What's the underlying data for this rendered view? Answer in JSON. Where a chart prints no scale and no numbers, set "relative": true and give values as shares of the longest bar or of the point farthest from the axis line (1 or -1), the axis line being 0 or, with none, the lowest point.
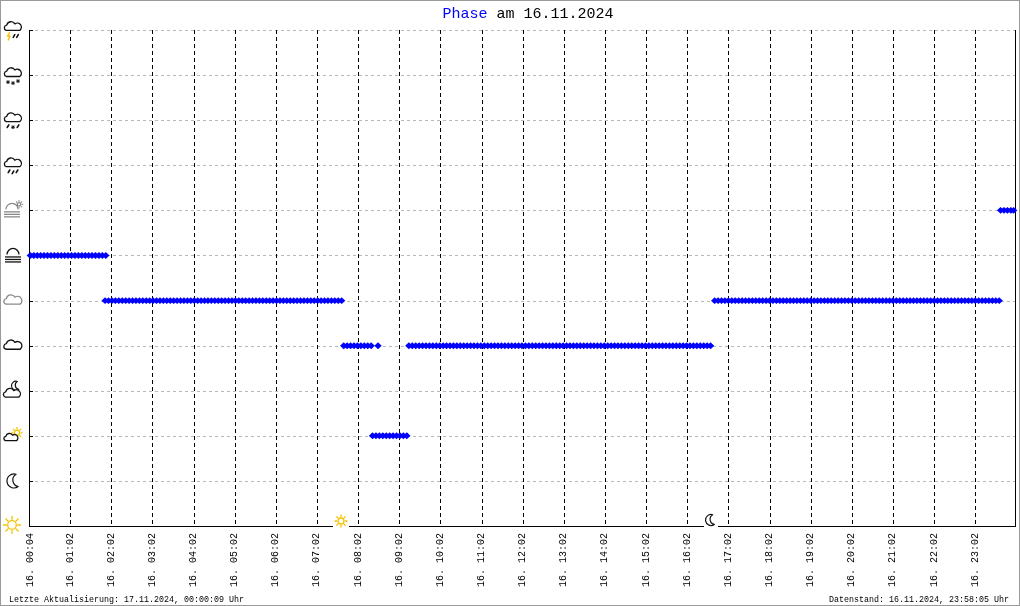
{
  "chart_data": {
    "type": "scatter",
    "title": "Phase am 16.11.2024",
    "annotations": [
      "Letzte Aktualisierung: 17.11.2024, 00:00:09 Uhr",
      "Datenstand: 16.11.2024, 23:58:05 Uhr"
    ],
    "relative": true,
    "grid": true,
    "marker": "diamond",
    "xlim": [
      "2024-11-16T00:02",
      "2024-11-17T00:00"
    ],
    "xticks": [
      {
        "value": "2024-11-16T00:04",
        "label": "16. 00:04"
      },
      {
        "value": "2024-11-16T01:02",
        "label": "16. 01:02"
      },
      {
        "value": "2024-11-16T02:02",
        "label": "16. 02:02"
      },
      {
        "value": "2024-11-16T03:02",
        "label": "16. 03:02"
      },
      {
        "value": "2024-11-16T04:02",
        "label": "16. 04:02"
      },
      {
        "value": "2024-11-16T05:02",
        "label": "16. 05:02"
      },
      {
        "value": "2024-11-16T06:02",
        "label": "16. 06:02"
      },
      {
        "value": "2024-11-16T07:02",
        "label": "16. 07:02"
      },
      {
        "value": "2024-11-16T08:02",
        "label": "16. 08:02"
      },
      {
        "value": "2024-11-16T09:02",
        "label": "16. 09:02"
      },
      {
        "value": "2024-11-16T10:02",
        "label": "16. 10:02"
      },
      {
        "value": "2024-11-16T11:02",
        "label": "16. 11:02"
      },
      {
        "value": "2024-11-16T12:02",
        "label": "16. 12:02"
      },
      {
        "value": "2024-11-16T13:02",
        "label": "16. 13:02"
      },
      {
        "value": "2024-11-16T14:02",
        "label": "16. 14:02"
      },
      {
        "value": "2024-11-16T15:02",
        "label": "16. 15:02"
      },
      {
        "value": "2024-11-16T16:02",
        "label": "16. 16:02"
      },
      {
        "value": "2024-11-16T17:02",
        "label": "16. 17:02"
      },
      {
        "value": "2024-11-16T18:02",
        "label": "16. 18:02"
      },
      {
        "value": "2024-11-16T19:02",
        "label": "16. 19:02"
      },
      {
        "value": "2024-11-16T20:02",
        "label": "16. 20:02"
      },
      {
        "value": "2024-11-16T21:02",
        "label": "16. 21:02"
      },
      {
        "value": "2024-11-16T22:02",
        "label": "16. 22:02"
      },
      {
        "value": "2024-11-16T23:02",
        "label": "16. 23:02"
      }
    ],
    "series": [
      {
        "color": "#0000ff",
        "x": [
          "2024-11-16T00:04",
          "2024-11-16T00:09",
          "2024-11-16T00:14",
          "2024-11-16T00:19",
          "2024-11-16T00:24",
          "2024-11-16T00:29",
          "2024-11-16T00:34",
          "2024-11-16T00:39",
          "2024-11-16T00:44",
          "2024-11-16T00:49",
          "2024-11-16T00:54",
          "2024-11-16T00:59",
          "2024-11-16T01:04",
          "2024-11-16T01:09",
          "2024-11-16T01:14",
          "2024-11-16T01:19",
          "2024-11-16T01:24",
          "2024-11-16T01:29",
          "2024-11-16T01:34",
          "2024-11-16T01:39",
          "2024-11-16T01:44",
          "2024-11-16T01:49",
          "2024-11-16T01:54",
          "2024-11-16T01:53",
          "2024-11-16T01:58",
          "2024-11-16T02:03",
          "2024-11-16T02:08",
          "2024-11-16T02:13",
          "2024-11-16T02:18",
          "2024-11-16T02:23",
          "2024-11-16T02:28",
          "2024-11-16T02:33",
          "2024-11-16T02:38",
          "2024-11-16T02:43",
          "2024-11-16T02:48",
          "2024-11-16T02:53",
          "2024-11-16T02:58",
          "2024-11-16T03:03",
          "2024-11-16T03:08",
          "2024-11-16T03:13",
          "2024-11-16T03:18",
          "2024-11-16T03:23",
          "2024-11-16T03:28",
          "2024-11-16T03:33",
          "2024-11-16T03:38",
          "2024-11-16T03:43",
          "2024-11-16T03:48",
          "2024-11-16T03:53",
          "2024-11-16T03:58",
          "2024-11-16T04:03",
          "2024-11-16T04:08",
          "2024-11-16T04:13",
          "2024-11-16T04:18",
          "2024-11-16T04:23",
          "2024-11-16T04:28",
          "2024-11-16T04:33",
          "2024-11-16T04:38",
          "2024-11-16T04:43",
          "2024-11-16T04:48",
          "2024-11-16T04:53",
          "2024-11-16T04:58",
          "2024-11-16T05:03",
          "2024-11-16T05:08",
          "2024-11-16T05:13",
          "2024-11-16T05:18",
          "2024-11-16T05:23",
          "2024-11-16T05:28",
          "2024-11-16T05:33",
          "2024-11-16T05:38",
          "2024-11-16T05:43",
          "2024-11-16T05:48",
          "2024-11-16T05:53",
          "2024-11-16T05:58",
          "2024-11-16T06:03",
          "2024-11-16T06:08",
          "2024-11-16T06:13",
          "2024-11-16T06:18",
          "2024-11-16T06:23",
          "2024-11-16T06:28",
          "2024-11-16T06:33",
          "2024-11-16T06:38",
          "2024-11-16T06:43",
          "2024-11-16T06:48",
          "2024-11-16T06:53",
          "2024-11-16T06:58",
          "2024-11-16T07:03",
          "2024-11-16T07:08",
          "2024-11-16T07:13",
          "2024-11-16T07:18",
          "2024-11-16T07:23",
          "2024-11-16T07:28",
          "2024-11-16T07:33",
          "2024-11-16T07:38",
          "2024-11-16T07:41",
          "2024-11-16T07:46",
          "2024-11-16T07:51",
          "2024-11-16T07:56",
          "2024-11-16T08:01",
          "2024-11-16T08:06",
          "2024-11-16T08:11",
          "2024-11-16T08:16",
          "2024-11-16T08:21",
          "2024-11-16T08:31",
          "2024-11-16T08:23",
          "2024-11-16T08:28",
          "2024-11-16T08:33",
          "2024-11-16T08:38",
          "2024-11-16T08:43",
          "2024-11-16T08:48",
          "2024-11-16T08:53",
          "2024-11-16T08:58",
          "2024-11-16T09:03",
          "2024-11-16T09:08",
          "2024-11-16T09:13",
          "2024-11-16T09:16",
          "2024-11-16T09:21",
          "2024-11-16T09:26",
          "2024-11-16T09:31",
          "2024-11-16T09:36",
          "2024-11-16T09:41",
          "2024-11-16T09:46",
          "2024-11-16T09:51",
          "2024-11-16T09:56",
          "2024-11-16T10:01",
          "2024-11-16T10:06",
          "2024-11-16T10:11",
          "2024-11-16T10:16",
          "2024-11-16T10:21",
          "2024-11-16T10:26",
          "2024-11-16T10:31",
          "2024-11-16T10:36",
          "2024-11-16T10:41",
          "2024-11-16T10:46",
          "2024-11-16T10:51",
          "2024-11-16T10:56",
          "2024-11-16T11:01",
          "2024-11-16T11:06",
          "2024-11-16T11:11",
          "2024-11-16T11:16",
          "2024-11-16T11:21",
          "2024-11-16T11:26",
          "2024-11-16T11:31",
          "2024-11-16T11:36",
          "2024-11-16T11:41",
          "2024-11-16T11:46",
          "2024-11-16T11:51",
          "2024-11-16T11:56",
          "2024-11-16T12:01",
          "2024-11-16T12:06",
          "2024-11-16T12:11",
          "2024-11-16T12:16",
          "2024-11-16T12:21",
          "2024-11-16T12:26",
          "2024-11-16T12:31",
          "2024-11-16T12:36",
          "2024-11-16T12:41",
          "2024-11-16T12:46",
          "2024-11-16T12:51",
          "2024-11-16T12:56",
          "2024-11-16T13:01",
          "2024-11-16T13:06",
          "2024-11-16T13:11",
          "2024-11-16T13:16",
          "2024-11-16T13:21",
          "2024-11-16T13:26",
          "2024-11-16T13:31",
          "2024-11-16T13:36",
          "2024-11-16T13:41",
          "2024-11-16T13:46",
          "2024-11-16T13:51",
          "2024-11-16T13:56",
          "2024-11-16T14:01",
          "2024-11-16T14:06",
          "2024-11-16T14:11",
          "2024-11-16T14:16",
          "2024-11-16T14:21",
          "2024-11-16T14:26",
          "2024-11-16T14:31",
          "2024-11-16T14:36",
          "2024-11-16T14:41",
          "2024-11-16T14:46",
          "2024-11-16T14:51",
          "2024-11-16T14:56",
          "2024-11-16T15:01",
          "2024-11-16T15:06",
          "2024-11-16T15:11",
          "2024-11-16T15:16",
          "2024-11-16T15:21",
          "2024-11-16T15:26",
          "2024-11-16T15:31",
          "2024-11-16T15:36",
          "2024-11-16T15:41",
          "2024-11-16T15:46",
          "2024-11-16T15:51",
          "2024-11-16T15:56",
          "2024-11-16T16:01",
          "2024-11-16T16:06",
          "2024-11-16T16:11",
          "2024-11-16T16:16",
          "2024-11-16T16:21",
          "2024-11-16T16:26",
          "2024-11-16T16:31",
          "2024-11-16T16:36",
          "2024-11-16T16:42",
          "2024-11-16T16:47",
          "2024-11-16T16:52",
          "2024-11-16T16:57",
          "2024-11-16T17:02",
          "2024-11-16T17:07",
          "2024-11-16T17:12",
          "2024-11-16T17:17",
          "2024-11-16T17:22",
          "2024-11-16T17:27",
          "2024-11-16T17:32",
          "2024-11-16T17:37",
          "2024-11-16T17:42",
          "2024-11-16T17:47",
          "2024-11-16T17:52",
          "2024-11-16T17:57",
          "2024-11-16T18:02",
          "2024-11-16T18:07",
          "2024-11-16T18:12",
          "2024-11-16T18:17",
          "2024-11-16T18:22",
          "2024-11-16T18:27",
          "2024-11-16T18:32",
          "2024-11-16T18:37",
          "2024-11-16T18:42",
          "2024-11-16T18:47",
          "2024-11-16T18:52",
          "2024-11-16T18:57",
          "2024-11-16T19:02",
          "2024-11-16T19:07",
          "2024-11-16T19:12",
          "2024-11-16T19:17",
          "2024-11-16T19:22",
          "2024-11-16T19:27",
          "2024-11-16T19:32",
          "2024-11-16T19:37",
          "2024-11-16T19:42",
          "2024-11-16T19:47",
          "2024-11-16T19:52",
          "2024-11-16T19:57",
          "2024-11-16T20:02",
          "2024-11-16T20:07",
          "2024-11-16T20:12",
          "2024-11-16T20:17",
          "2024-11-16T20:22",
          "2024-11-16T20:27",
          "2024-11-16T20:32",
          "2024-11-16T20:37",
          "2024-11-16T20:42",
          "2024-11-16T20:47",
          "2024-11-16T20:52",
          "2024-11-16T20:57",
          "2024-11-16T21:02",
          "2024-11-16T21:07",
          "2024-11-16T21:12",
          "2024-11-16T21:17",
          "2024-11-16T21:22",
          "2024-11-16T21:27",
          "2024-11-16T21:32",
          "2024-11-16T21:37",
          "2024-11-16T21:42",
          "2024-11-16T21:47",
          "2024-11-16T21:52",
          "2024-11-16T21:57",
          "2024-11-16T22:02",
          "2024-11-16T22:07",
          "2024-11-16T22:12",
          "2024-11-16T22:17",
          "2024-11-16T22:22",
          "2024-11-16T22:27",
          "2024-11-16T22:32",
          "2024-11-16T22:37",
          "2024-11-16T22:42",
          "2024-11-16T22:47",
          "2024-11-16T22:52",
          "2024-11-16T22:57",
          "2024-11-16T23:02",
          "2024-11-16T23:07",
          "2024-11-16T23:12",
          "2024-11-16T23:17",
          "2024-11-16T23:22",
          "2024-11-16T23:27",
          "2024-11-16T23:32",
          "2024-11-16T23:37",
          "2024-11-16T23:39",
          "2024-11-16T23:44",
          "2024-11-16T23:49",
          "2024-11-16T23:54",
          "2024-11-16T23:58"
        ],
        "values": [
          0.857,
          0.857,
          0.857,
          0.857,
          0.857,
          0.857,
          0.857,
          0.857,
          0.857,
          0.857,
          0.857,
          0.857,
          0.857,
          0.857,
          0.857,
          0.857,
          0.857,
          0.857,
          0.857,
          0.857,
          0.857,
          0.857,
          0.857,
          0.714,
          0.714,
          0.714,
          0.714,
          0.714,
          0.714,
          0.714,
          0.714,
          0.714,
          0.714,
          0.714,
          0.714,
          0.714,
          0.714,
          0.714,
          0.714,
          0.714,
          0.714,
          0.714,
          0.714,
          0.714,
          0.714,
          0.714,
          0.714,
          0.714,
          0.714,
          0.714,
          0.714,
          0.714,
          0.714,
          0.714,
          0.714,
          0.714,
          0.714,
          0.714,
          0.714,
          0.714,
          0.714,
          0.714,
          0.714,
          0.714,
          0.714,
          0.714,
          0.714,
          0.714,
          0.714,
          0.714,
          0.714,
          0.714,
          0.714,
          0.714,
          0.714,
          0.714,
          0.714,
          0.714,
          0.714,
          0.714,
          0.714,
          0.714,
          0.714,
          0.714,
          0.714,
          0.714,
          0.714,
          0.714,
          0.714,
          0.714,
          0.714,
          0.714,
          0.714,
          0.571,
          0.571,
          0.571,
          0.571,
          0.571,
          0.571,
          0.571,
          0.571,
          0.571,
          0.571,
          0.286,
          0.286,
          0.286,
          0.286,
          0.286,
          0.286,
          0.286,
          0.286,
          0.286,
          0.286,
          0.286,
          0.571,
          0.571,
          0.571,
          0.571,
          0.571,
          0.571,
          0.571,
          0.571,
          0.571,
          0.571,
          0.571,
          0.571,
          0.571,
          0.571,
          0.571,
          0.571,
          0.571,
          0.571,
          0.571,
          0.571,
          0.571,
          0.571,
          0.571,
          0.571,
          0.571,
          0.571,
          0.571,
          0.571,
          0.571,
          0.571,
          0.571,
          0.571,
          0.571,
          0.571,
          0.571,
          0.571,
          0.571,
          0.571,
          0.571,
          0.571,
          0.571,
          0.571,
          0.571,
          0.571,
          0.571,
          0.571,
          0.571,
          0.571,
          0.571,
          0.571,
          0.571,
          0.571,
          0.571,
          0.571,
          0.571,
          0.571,
          0.571,
          0.571,
          0.571,
          0.571,
          0.571,
          0.571,
          0.571,
          0.571,
          0.571,
          0.571,
          0.571,
          0.571,
          0.571,
          0.571,
          0.571,
          0.571,
          0.571,
          0.571,
          0.571,
          0.571,
          0.571,
          0.571,
          0.571,
          0.571,
          0.571,
          0.571,
          0.571,
          0.571,
          0.571,
          0.571,
          0.571,
          0.571,
          0.571,
          0.714,
          0.714,
          0.714,
          0.714,
          0.714,
          0.714,
          0.714,
          0.714,
          0.714,
          0.714,
          0.714,
          0.714,
          0.714,
          0.714,
          0.714,
          0.714,
          0.714,
          0.714,
          0.714,
          0.714,
          0.714,
          0.714,
          0.714,
          0.714,
          0.714,
          0.714,
          0.714,
          0.714,
          0.714,
          0.714,
          0.714,
          0.714,
          0.714,
          0.714,
          0.714,
          0.714,
          0.714,
          0.714,
          0.714,
          0.714,
          0.714,
          0.714,
          0.714,
          0.714,
          0.714,
          0.714,
          0.714,
          0.714,
          0.714,
          0.714,
          0.714,
          0.714,
          0.714,
          0.714,
          0.714,
          0.714,
          0.714,
          0.714,
          0.714,
          0.714,
          0.714,
          0.714,
          0.714,
          0.714,
          0.714,
          0.714,
          0.714,
          0.714,
          0.714,
          0.714,
          0.714,
          0.714,
          0.714,
          0.714,
          0.714,
          0.714,
          0.714,
          0.714,
          0.714,
          0.714,
          0.714,
          0.714,
          0.714,
          0.714,
          1,
          1,
          1,
          1,
          1
        ]
      }
    ]
  }
}
